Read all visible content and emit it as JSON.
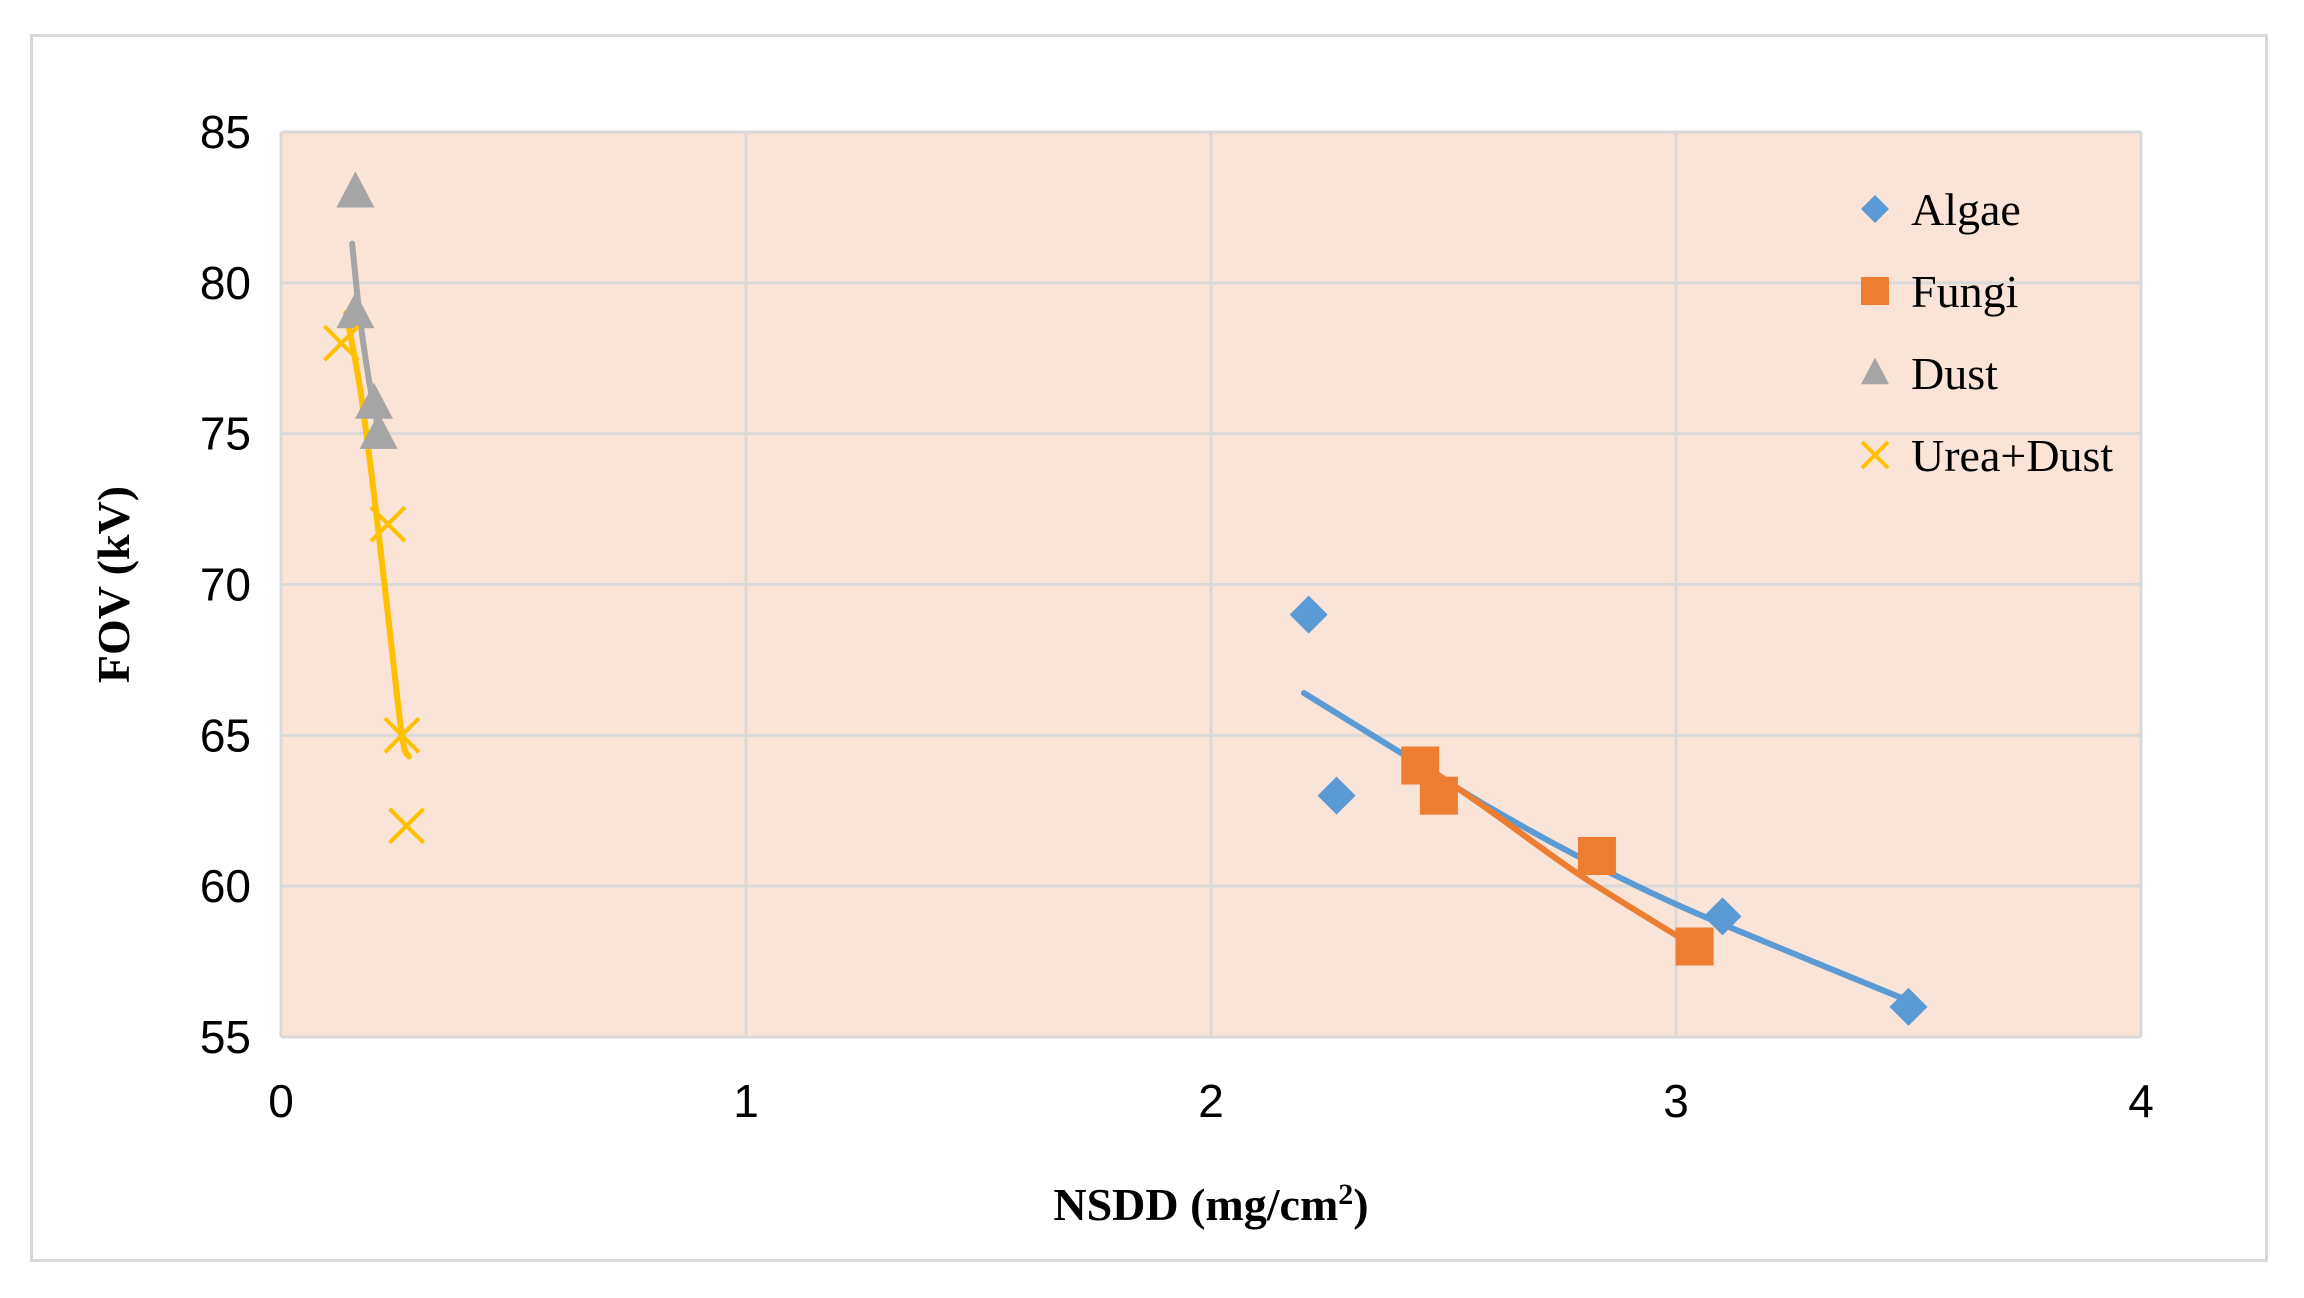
{
  "chart_data": {
    "type": "scatter",
    "xlabel": "NSDD (mg/cm",
    "xlabel_sup": "2",
    "xlabel_end": ")",
    "ylabel": "FOV (kV)",
    "xlim": [
      0,
      4
    ],
    "ylim": [
      55,
      85
    ],
    "xticks": [
      0,
      1,
      2,
      3,
      4
    ],
    "yticks": [
      55,
      60,
      65,
      70,
      75,
      80,
      85
    ],
    "grid": true,
    "legend_position": "top-right",
    "plot_background": "#f9e4d7",
    "series": [
      {
        "name": "Algae",
        "marker": "diamond",
        "color": "#5b9bd5",
        "points": [
          [
            2.21,
            69
          ],
          [
            2.27,
            63
          ],
          [
            3.1,
            59
          ],
          [
            3.5,
            56
          ]
        ],
        "trend": [
          [
            2.2,
            66.4
          ],
          [
            2.4,
            64.5
          ],
          [
            2.6,
            62.6
          ],
          [
            2.8,
            60.9
          ],
          [
            3.0,
            59.4
          ],
          [
            3.2,
            58.1
          ],
          [
            3.5,
            56.2
          ]
        ]
      },
      {
        "name": "Fungi",
        "marker": "square",
        "color": "#ed7d31",
        "points": [
          [
            2.45,
            64
          ],
          [
            2.49,
            63
          ],
          [
            2.83,
            61
          ],
          [
            3.04,
            58
          ]
        ],
        "trend": [
          [
            2.45,
            64.1
          ],
          [
            2.6,
            62.5
          ],
          [
            2.8,
            60.3
          ],
          [
            3.04,
            58.0
          ]
        ]
      },
      {
        "name": "Dust",
        "marker": "triangle",
        "color": "#a5a5a5",
        "points": [
          [
            0.16,
            83
          ],
          [
            0.16,
            79
          ],
          [
            0.2,
            76
          ],
          [
            0.21,
            75
          ]
        ],
        "trend": [
          [
            0.153,
            81.3
          ],
          [
            0.17,
            78.8
          ],
          [
            0.19,
            76.7
          ],
          [
            0.21,
            75.1
          ]
        ]
      },
      {
        "name": "Urea+Dust",
        "marker": "x",
        "color": "#ffc000",
        "points": [
          [
            0.13,
            78
          ],
          [
            0.23,
            72
          ],
          [
            0.26,
            65
          ],
          [
            0.27,
            62
          ]
        ],
        "trend": [
          [
            0.14,
            79.0
          ],
          [
            0.17,
            76.5
          ],
          [
            0.2,
            73.0
          ],
          [
            0.23,
            69.0
          ],
          [
            0.26,
            65.0
          ],
          [
            0.275,
            64.3
          ]
        ]
      }
    ]
  }
}
